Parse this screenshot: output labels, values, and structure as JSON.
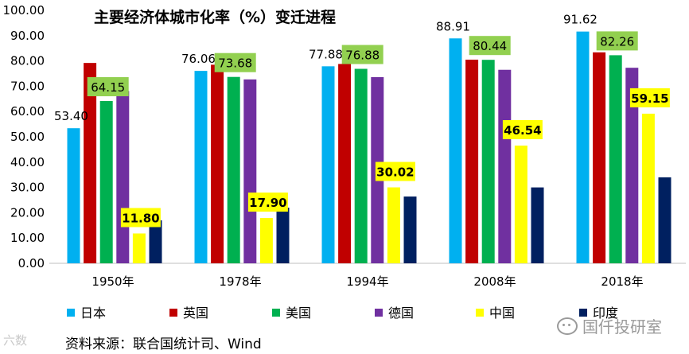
{
  "chart_data": {
    "type": "bar",
    "title": "主要经济体城市化率（%）变迁进程",
    "categories": [
      "1950年",
      "1978年",
      "1994年",
      "2008年",
      "2018年"
    ],
    "ylim": [
      0,
      100
    ],
    "yticks": [
      "0.00",
      "10.00",
      "20.00",
      "30.00",
      "40.00",
      "50.00",
      "60.00",
      "70.00",
      "80.00",
      "90.00",
      "100.00"
    ],
    "grid": false,
    "legend_position": "bottom",
    "series": [
      {
        "name": "日本",
        "color": "#00B0F0",
        "values": [
          53.4,
          76.06,
          77.88,
          88.91,
          91.62
        ],
        "labels": [
          "53.40",
          "76.06",
          "77.88",
          "88.91",
          "91.62"
        ],
        "label_style": "plain"
      },
      {
        "name": "英国",
        "color": "#C00000",
        "values": [
          79.2,
          78.5,
          78.8,
          80.5,
          83.4
        ],
        "labels": null,
        "label_style": "none"
      },
      {
        "name": "美国",
        "color": "#00B050",
        "values": [
          64.15,
          73.68,
          76.88,
          80.44,
          82.26
        ],
        "labels": [
          "64.15",
          "73.68",
          "76.88",
          "80.44",
          "82.26"
        ],
        "label_style": "green"
      },
      {
        "name": "德国",
        "color": "#7030A0",
        "values": [
          68.1,
          72.7,
          73.6,
          76.5,
          77.3
        ],
        "labels": null,
        "label_style": "none"
      },
      {
        "name": "中国",
        "color": "#FFFF00",
        "values": [
          11.8,
          17.9,
          30.02,
          46.54,
          59.15
        ],
        "labels": [
          "11.80",
          "17.90",
          "30.02",
          "46.54",
          "59.15"
        ],
        "label_style": "yellow"
      },
      {
        "name": "印度",
        "color": "#002060",
        "values": [
          17.0,
          22.0,
          26.4,
          30.0,
          34.0
        ],
        "labels": null,
        "label_style": "none"
      }
    ]
  },
  "source_text": "资料来源：联合国统计司、Wind",
  "watermark_left": "六数",
  "watermark_right": "国仟投研室"
}
